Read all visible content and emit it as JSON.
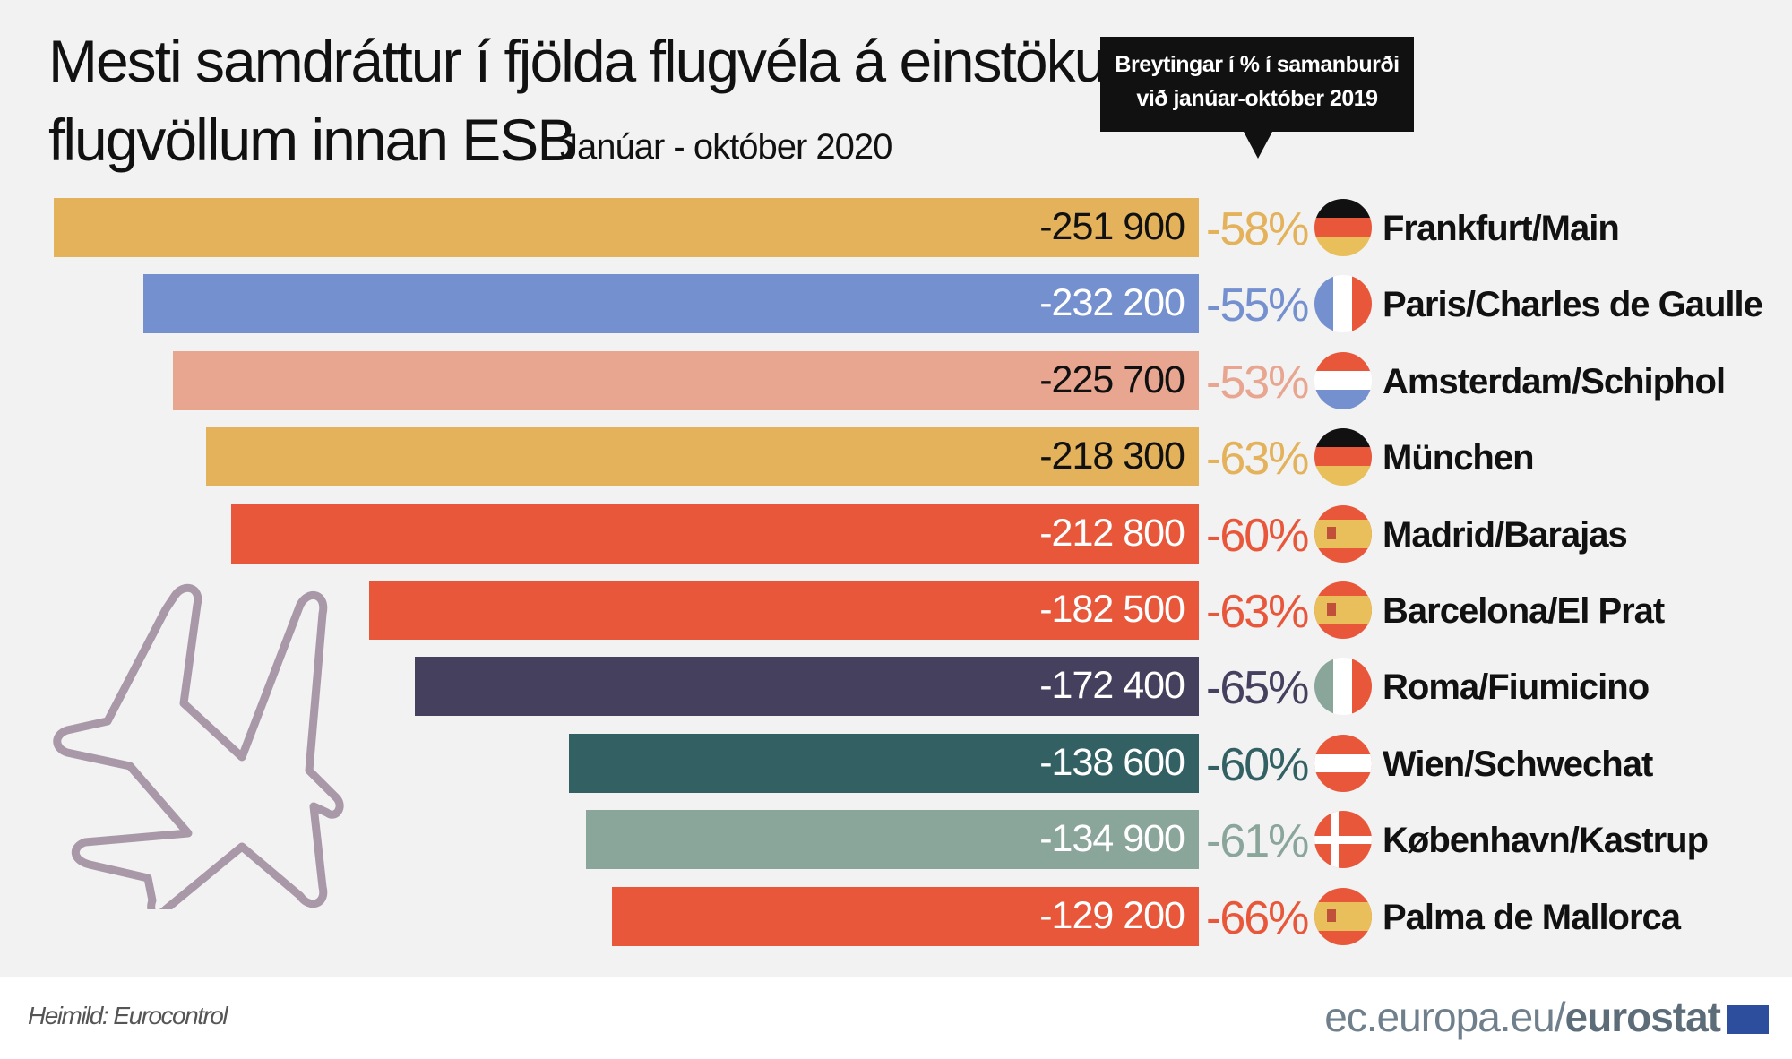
{
  "title_line1": "Mesti samdráttur í fjölda flugvéla á einstökum",
  "title_line2": "flugvöllum innan ESB",
  "subtitle": "Janúar - október 2020",
  "callout_line1": "Breytingar í % í samanburði",
  "callout_line2": "við janúar-október  2019",
  "source": "Heimild: Eurocontrol",
  "site_plain": "ec.europa.eu/",
  "site_bold": "eurostat",
  "chart_data": {
    "type": "bar",
    "orientation": "horizontal",
    "title": "Mesti samdráttur í fjölda flugvéla á einstökum flugvöllum innan ESB",
    "categories": [
      "Frankfurt/Main",
      "Paris/Charles de Gaulle",
      "Amsterdam/Schiphol",
      "München",
      "Madrid/Barajas",
      "Barcelona/El Prat",
      "Roma/Fiumicino",
      "Wien/Schwechat",
      "København/Kastrup",
      "Palma de Mallorca"
    ],
    "values": [
      -251900,
      -232200,
      -225700,
      -218300,
      -212800,
      -182500,
      -172400,
      -138600,
      -134900,
      -129200
    ],
    "labels": [
      "-251 900",
      "-232 200",
      "-225 700",
      "-218 300",
      "-212 800",
      "-182 500",
      "-172 400",
      "-138 600",
      "-134 900",
      "-129 200"
    ],
    "percent_change": [
      "-58%",
      "-55%",
      "-53%",
      "-63%",
      "-60%",
      "-63%",
      "-65%",
      "-60%",
      "-61%",
      "-66%"
    ],
    "countries": [
      "DE",
      "FR",
      "NL",
      "DE",
      "ES",
      "ES",
      "IT",
      "AT",
      "DK",
      "ES"
    ],
    "colors": [
      "#e3b25a",
      "#7590cf",
      "#e8a590",
      "#e3b25a",
      "#e9573b",
      "#e9573b",
      "#44405e",
      "#336163",
      "#8aa59a",
      "#e9573b"
    ],
    "label_colors": [
      "#111111",
      "#ffffff",
      "#111111",
      "#111111",
      "#ffffff",
      "#ffffff",
      "#ffffff",
      "#ffffff",
      "#ffffff",
      "#ffffff"
    ]
  }
}
